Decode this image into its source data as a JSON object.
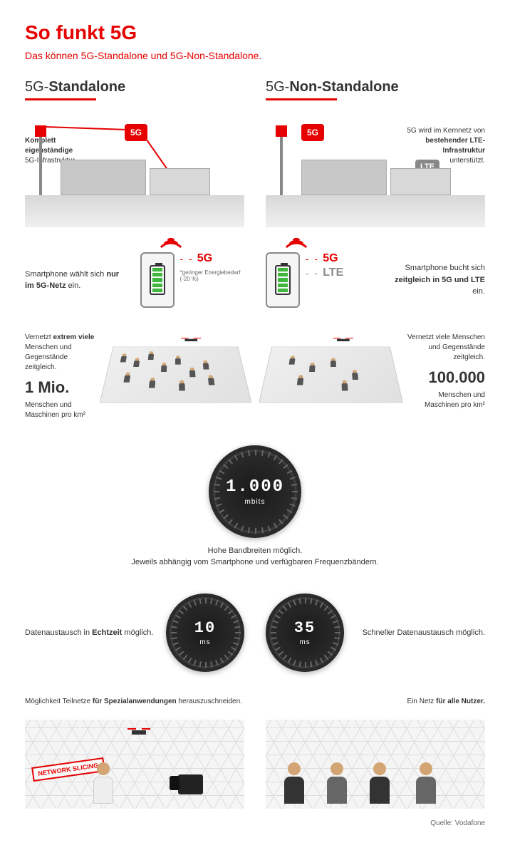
{
  "colors": {
    "brand_red": "#e60000",
    "gray": "#888888",
    "text": "#333333",
    "green_battery": "#3db83d"
  },
  "header": {
    "title": "So funkt 5G",
    "subtitle": "Das können 5G-Standalone und 5G-Non-Standalone."
  },
  "columns": {
    "left": {
      "prefix": "5G-",
      "name": "Standalone"
    },
    "right": {
      "prefix": "5G-",
      "name": "Non-Standalone"
    }
  },
  "row1": {
    "left": {
      "line1_bold": "Komplett eigenständige",
      "line2": "5G-Infrastruktur.",
      "badge": "5G"
    },
    "right": {
      "pre": "5G wird im Kernnetz von",
      "bold": "bestehender LTE-Infrastruktur",
      "post": "unterstützt.",
      "badge5g": "5G",
      "badgeLte": "LTE"
    }
  },
  "row2": {
    "left": {
      "text_pre": "Smartphone wählt sich ",
      "text_bold": "nur im 5G-Netz",
      "text_post": " ein.",
      "tag": "5G",
      "note": "*geringer Energiebedarf (-20 %)"
    },
    "right": {
      "tag5g": "5G",
      "tagLte": "LTE",
      "text_pre": "Smartphone bucht sich ",
      "text_bold": "zeitgleich in 5G und LTE",
      "text_post": " ein."
    }
  },
  "row3": {
    "left": {
      "text_pre": "Vernetzt ",
      "text_bold": "extrem viele",
      "text_post": " Menschen und Gegenstände zeitgleich.",
      "bignum": "1 Mio.",
      "unit": "Menschen und Maschinen pro km²"
    },
    "right": {
      "text": "Vernetzt viele Menschen und Gegenstände zeitgleich.",
      "bignum": "100.000",
      "unit": "Menschen und Maschinen pro km²"
    }
  },
  "row4": {
    "gauge_val": "1.000",
    "gauge_unit": "mbits",
    "caption_line1": "Hohe Bandbreiten möglich.",
    "caption_line2": "Jeweils abhängig vom Smartphone und verfügbaren Frequenzbändern."
  },
  "row5": {
    "left": {
      "text_pre": "Datenaustausch in ",
      "text_bold": "Echtzeit",
      "text_post": " möglich.",
      "gauge_val": "10",
      "gauge_unit": "ms"
    },
    "right": {
      "text": "Schneller Datenaustausch möglich.",
      "gauge_val": "35",
      "gauge_unit": "ms"
    }
  },
  "row6": {
    "left": {
      "text_pre": "Möglichkeit Teilnetze ",
      "text_bold": "für Spezialanwendungen",
      "text_post": " herauszuschneiden.",
      "stamp": "NETWORK SLICING"
    },
    "right": {
      "text_pre": "Ein Netz ",
      "text_bold": "für alle Nutzer."
    }
  },
  "source": "Quelle: Vodafone"
}
